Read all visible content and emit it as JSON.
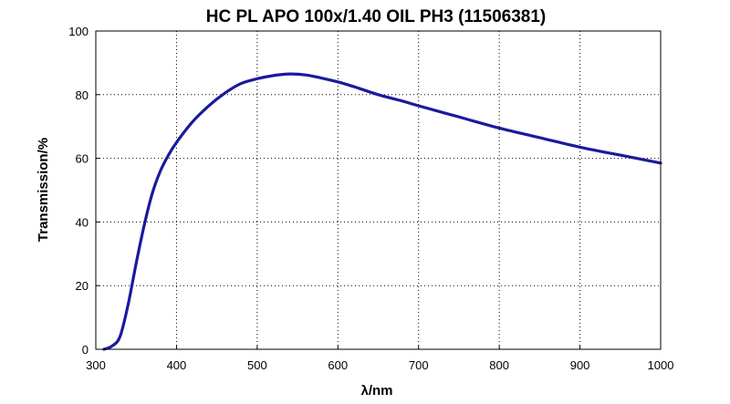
{
  "chart_data": {
    "type": "line",
    "title": "HC PL APO 100x/1.40 OIL PH3 (11506381)",
    "xlabel": "λ/nm",
    "ylabel": "Transmission/%",
    "xlim": [
      300,
      1000
    ],
    "ylim": [
      0,
      100
    ],
    "x_ticks": [
      "300",
      "400",
      "500",
      "600",
      "700",
      "800",
      "900",
      "1000"
    ],
    "y_ticks": [
      "0",
      "20",
      "40",
      "60",
      "80",
      "100"
    ],
    "grid": true,
    "grid_style": "dotted",
    "legend": "none",
    "series": [
      {
        "color": "#1a1a9c",
        "x": [
          310,
          320,
          330,
          340,
          350,
          360,
          370,
          380,
          390,
          400,
          420,
          440,
          460,
          480,
          500,
          520,
          540,
          560,
          580,
          600,
          620,
          650,
          680,
          700,
          750,
          800,
          850,
          900,
          950,
          1000
        ],
        "y": [
          0,
          1,
          4,
          14,
          27,
          39,
          49,
          56,
          61,
          65,
          71.5,
          76.5,
          80.5,
          83.5,
          85,
          86,
          86.5,
          86.2,
          85.2,
          84,
          82.5,
          80,
          78,
          76.5,
          73,
          69.5,
          66.5,
          63.5,
          61,
          58.5
        ]
      }
    ]
  }
}
